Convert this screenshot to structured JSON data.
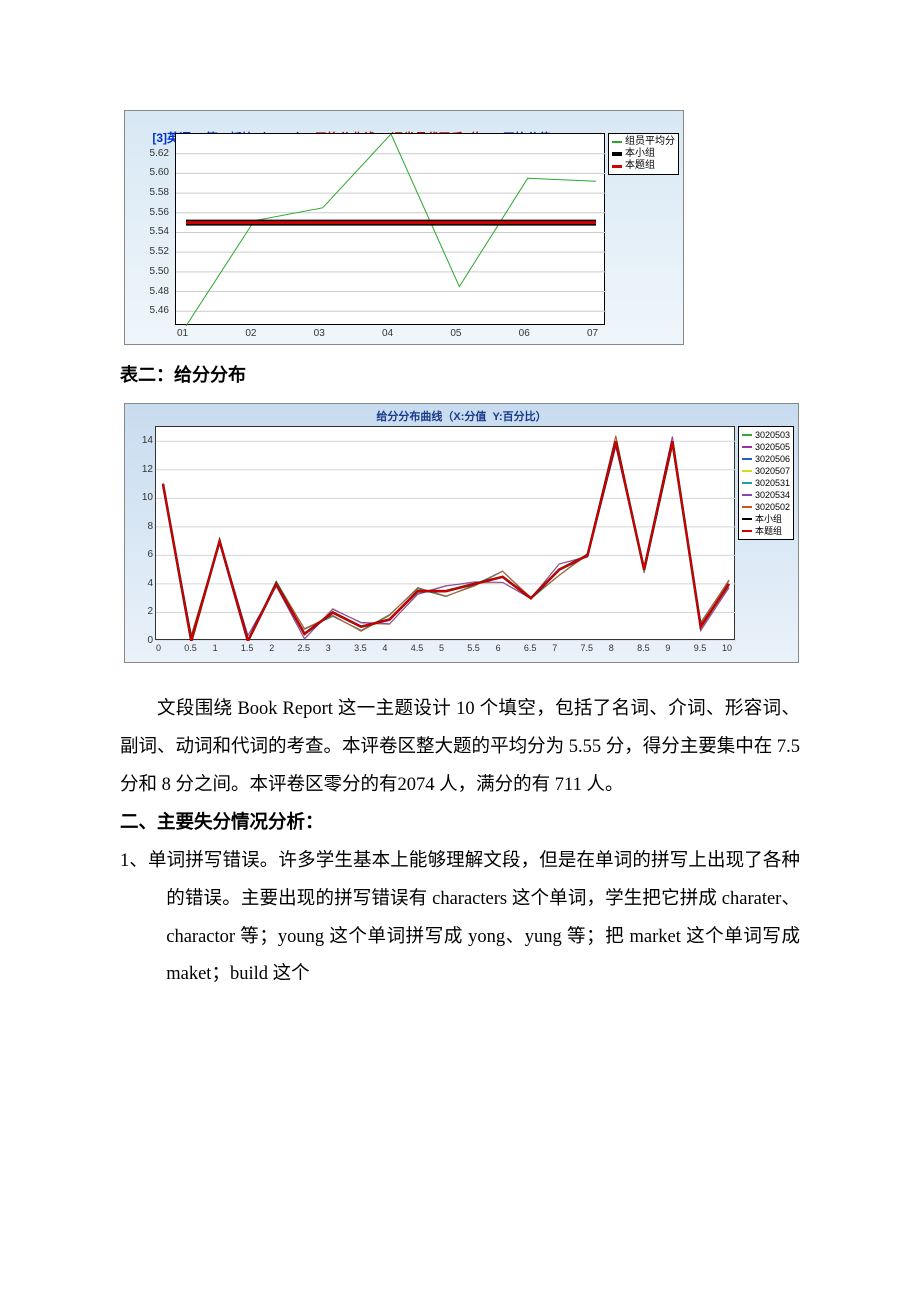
{
  "chart1": {
    "title_part1": "[3]英语[2]第二板块（61-70）",
    "title_part2": "平均分曲线(X:评卷员代码后2位",
    "title_part3": "Y:平均分值)",
    "title_colors": {
      "part1": "#0033cc",
      "part2": "#cc0000",
      "part3": "#0033cc"
    },
    "bg_gradient": [
      "#d8e8f4",
      "#eff6fb"
    ],
    "plot_bg": "#ffffff",
    "plot_border": "#000000",
    "grid_color": "#cccccc",
    "x_categories": [
      "01",
      "02",
      "03",
      "04",
      "05",
      "06",
      "07"
    ],
    "y_ticks": [
      5.46,
      5.48,
      5.5,
      5.52,
      5.54,
      5.56,
      5.58,
      5.6,
      5.62
    ],
    "ylim": [
      5.445,
      5.64
    ],
    "series": [
      {
        "name": "组员平均分",
        "color": "#2da62d",
        "width": 1,
        "values": [
          5.445,
          5.552,
          5.565,
          5.64,
          5.485,
          5.595,
          5.592
        ]
      },
      {
        "name": "本小组",
        "color": "#000000",
        "width": 6,
        "values": [
          5.55,
          5.55,
          5.55,
          5.55,
          5.55,
          5.55,
          5.55
        ]
      },
      {
        "name": "本题组",
        "color": "#d40000",
        "width": 3,
        "values": [
          5.55,
          5.55,
          5.55,
          5.55,
          5.55,
          5.55,
          5.55
        ]
      }
    ]
  },
  "caption2": "表二：给分分布",
  "chart2": {
    "title": "给分分布曲线（X:分值  Y:百分比）",
    "title_color": "#1a3a8a",
    "bg_gradient": [
      "#c8dcef",
      "#eaf2fa"
    ],
    "plot_bg": "#ffffff",
    "plot_border": "#333333",
    "grid_color": "#d5d5d5",
    "x_categories": [
      "0",
      "0.5",
      "1",
      "1.5",
      "2",
      "2.5",
      "3",
      "3.5",
      "4",
      "4.5",
      "5",
      "5.5",
      "6",
      "6.5",
      "7",
      "7.5",
      "8",
      "8.5",
      "9",
      "9.5",
      "10"
    ],
    "y_ticks": [
      0,
      2,
      4,
      6,
      8,
      10,
      12,
      14
    ],
    "ylim": [
      0,
      15
    ],
    "legend": [
      {
        "name": "3020503",
        "color": "#33aa33"
      },
      {
        "name": "3020505",
        "color": "#a030a0"
      },
      {
        "name": "3020506",
        "color": "#2060c0"
      },
      {
        "name": "3020507",
        "color": "#d8d820"
      },
      {
        "name": "3020531",
        "color": "#20a0a0"
      },
      {
        "name": "3020534",
        "color": "#8844aa"
      },
      {
        "name": "3020502",
        "color": "#cc5522"
      },
      {
        "name": "本小组",
        "color": "#000000"
      },
      {
        "name": "本题组",
        "color": "#d40000"
      }
    ],
    "shared_shape": [
      11,
      0,
      7,
      0,
      4,
      0.5,
      2,
      1,
      1.5,
      3.5,
      3.5,
      4,
      4.5,
      3,
      5,
      6,
      14,
      5,
      14,
      1,
      4
    ],
    "jitter": 0.4
  },
  "paragraph1": "文段围绕 Book Report 这一主题设计 10 个填空，包括了名词、介词、形容词、副词、动词和代词的考查。本评卷区整大题的平均分为 5.55 分，得分主要集中在 7.5 分和 8 分之间。本评卷区零分的有2074 人，满分的有 711 人。",
  "heading2": "二、主要失分情况分析：",
  "list1_num": "1、",
  "list1_text": "单词拼写错误。许多学生基本上能够理解文段，但是在单词的拼写上出现了各种的错误。主要出现的拼写错误有 characters 这个单词，学生把它拼成 charater、charactor 等；young 这个单词拼写成 yong、yung 等；把 market 这个单词写成 maket；build 这个"
}
